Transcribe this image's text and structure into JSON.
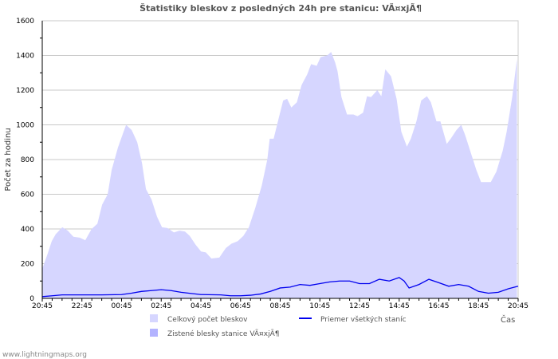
{
  "chart_data": {
    "type": "area",
    "title": "Štatistiky bleskov z posledných 24h pre stanicu: VÃ¤xjÃ¶",
    "xlabel": "Čas",
    "ylabel": "Počet za hodinu",
    "ylim": [
      0,
      1600
    ],
    "yticks": [
      0,
      200,
      400,
      600,
      800,
      1000,
      1200,
      1400,
      1600
    ],
    "xlim_hours": [
      0,
      24
    ],
    "xtick_labels": [
      "20:45",
      "22:45",
      "00:45",
      "02:45",
      "04:45",
      "06:45",
      "08:45",
      "10:45",
      "12:45",
      "14:45",
      "16:45",
      "18:45",
      "20:45"
    ],
    "grid": true,
    "legend_position": "bottom",
    "colors": {
      "total": "#d6d6ff",
      "station": "#b3b3ff",
      "average": "#0000ee",
      "grid": "#c8c8c8"
    },
    "series": [
      {
        "name": "Celkový počet bleskov",
        "kind": "area",
        "x": [
          0,
          0.28,
          0.48,
          0.68,
          1.01,
          1.29,
          1.57,
          1.89,
          2.17,
          2.49,
          2.78,
          3.02,
          3.3,
          3.5,
          3.82,
          4.1,
          4.23,
          4.51,
          4.79,
          5.03,
          5.23,
          5.51,
          5.79,
          6.04,
          6.32,
          6.64,
          6.92,
          7.2,
          7.44,
          7.73,
          8.01,
          8.25,
          8.53,
          8.93,
          9.26,
          9.54,
          9.86,
          10.14,
          10.42,
          10.74,
          11.07,
          11.35,
          11.47,
          11.67,
          11.95,
          12.15,
          12.35,
          12.56,
          12.84,
          13.08,
          13.36,
          13.56,
          13.84,
          14.04,
          14.37,
          14.57,
          14.77,
          14.89,
          15.09,
          15.37,
          15.69,
          15.9,
          16.18,
          16.38,
          16.58,
          16.9,
          17.1,
          17.3,
          17.59,
          17.87,
          18.11,
          18.39,
          18.59,
          18.87,
          19.11,
          19.4,
          19.6,
          19.88,
          20.08,
          20.4,
          20.6,
          20.89,
          21.13,
          21.33,
          21.61,
          21.89,
          22.13,
          22.62,
          22.9,
          23.22,
          23.42,
          23.7,
          23.94
        ],
        "values": [
          170,
          260,
          330,
          370,
          410,
          390,
          355,
          350,
          335,
          400,
          430,
          540,
          600,
          740,
          870,
          960,
          1000,
          970,
          900,
          780,
          630,
          570,
          470,
          410,
          405,
          380,
          390,
          385,
          360,
          310,
          270,
          265,
          230,
          235,
          290,
          315,
          330,
          360,
          410,
          520,
          650,
          800,
          920,
          920,
          1050,
          1140,
          1150,
          1100,
          1130,
          1230,
          1290,
          1350,
          1340,
          1390,
          1400,
          1420,
          1360,
          1310,
          1160,
          1060,
          1060,
          1050,
          1070,
          1165,
          1160,
          1200,
          1165,
          1320,
          1280,
          1150,
          960,
          875,
          920,
          1020,
          1140,
          1165,
          1130,
          1020,
          1020,
          890,
          920,
          970,
          1000,
          940,
          840,
          740,
          670,
          670,
          730,
          850,
          960,
          1160,
          1380
        ]
      },
      {
        "name": "Zistené blesky stanice VÃ¤xjÃ¶",
        "kind": "area",
        "x": [],
        "values": []
      },
      {
        "name": "Priemer všetkých staníc",
        "kind": "line",
        "x": [
          0,
          0.5,
          1,
          2,
          3,
          4,
          4.5,
          5,
          5.5,
          6,
          6.5,
          7,
          8,
          9,
          9.5,
          10,
          10.5,
          11,
          11.5,
          12,
          12.5,
          13,
          13.5,
          14,
          14.5,
          15,
          15.5,
          16,
          16.5,
          17,
          17.5,
          18,
          18.25,
          18.5,
          19,
          19.5,
          20,
          20.5,
          21,
          21.5,
          22,
          22.5,
          23,
          23.5,
          24
        ],
        "values": [
          10,
          15,
          20,
          20,
          20,
          22,
          30,
          40,
          45,
          50,
          45,
          35,
          22,
          20,
          15,
          15,
          18,
          25,
          40,
          60,
          65,
          80,
          75,
          85,
          95,
          100,
          100,
          85,
          85,
          110,
          100,
          120,
          100,
          60,
          80,
          110,
          90,
          70,
          80,
          70,
          40,
          30,
          35,
          55,
          70
        ]
      }
    ]
  },
  "footer": {
    "credit": "www.lightningmaps.org"
  }
}
